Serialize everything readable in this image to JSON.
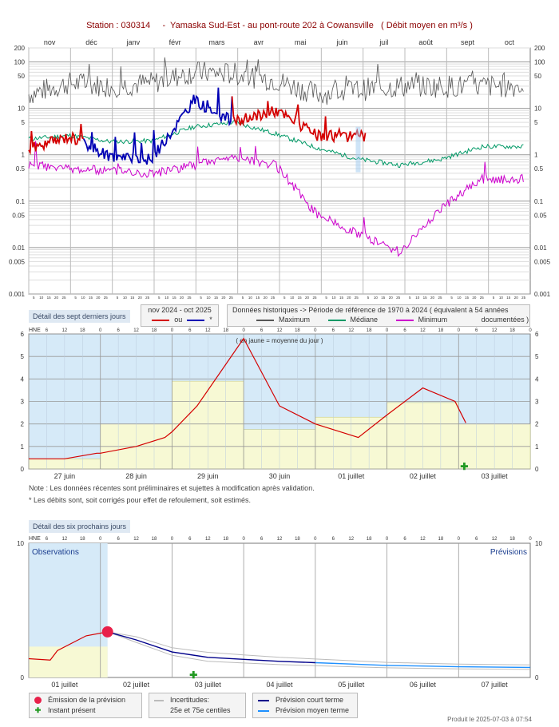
{
  "header": {
    "title": "Station : 030314     -  Yamaska Sud-Est - au pont-route 202 à Cowansville   ( Débit moyen en m³/s )"
  },
  "colors": {
    "obs_red": "#d40000",
    "obs_blue": "#0000b4",
    "median": "#009966",
    "maximum": "#555555",
    "minimum": "#cc00cc",
    "observed_bg": "#d6eaf8",
    "daily_mean_fill": "#f7f9d4",
    "forecast_short": "#00008b",
    "forecast_medium": "#1e90ff",
    "emission_dot": "#e8204a",
    "now_arrow": "#229922"
  },
  "annual_panel": {
    "legend_obs": {
      "period": "nov 2024 - oct 2025",
      "or": "ou",
      "star": "*"
    },
    "legend_hist": {
      "heading": "Données historiques -> Période de référence  de 1970 à 2024   ( équivalent à 54 années",
      "maximum": "Maximum",
      "median": "Médiane",
      "minimum": "Minimum",
      "documented": "documentées )"
    }
  },
  "week_panel": {
    "section_label": "Détail des sept derniers jours",
    "unit_tag": "HNE",
    "caption": "( en jaune = moyenne du jour )",
    "note1": "Note : Les données récentes sont préliminaires et sujettes à modification après validation.",
    "note2": "* Les débits sont, soit corrigés pour effet de refoulement, soit estimés."
  },
  "forecast_panel": {
    "section_label": "Détail des six prochains jours",
    "unit_tag": "HNE",
    "obs_label": "Observations",
    "fcst_label": "Prévisions",
    "legend": {
      "emission": "Émission de la prévision",
      "now": "Instant présent",
      "uncert1": "Incertitudes:",
      "uncert2": "25e et 75e centiles",
      "short": "Prévision court terme",
      "medium": "Prévision moyen terme"
    }
  },
  "footer": {
    "produced": "Produit le 2025-07-03 à 07:54"
  },
  "chart_data": [
    {
      "type": "line",
      "title": "Station : 030314 - Yamaska Sud-Est - au pont-route 202 à Cowansville ( Débit moyen en m³/s )",
      "x_labels": [
        "nov",
        "déc",
        "janv",
        "févr",
        "mars",
        "avr",
        "mai",
        "juin",
        "juil",
        "août",
        "sept",
        "oct"
      ],
      "x_day_ticks": [
        "5",
        "10",
        "15",
        "20",
        "25"
      ],
      "y_scale": "log",
      "ylim": [
        0.001,
        200
      ],
      "y_ticks": [
        "200",
        "100",
        "50",
        "10",
        "5",
        "1",
        "0.5",
        "0.1",
        "0.05",
        "0.01",
        "0.005",
        "0.001"
      ],
      "series": [
        {
          "name": "Maximum",
          "month_values": [
            20,
            35,
            30,
            35,
            60,
            55,
            40,
            20,
            25,
            30,
            30,
            30
          ]
        },
        {
          "name": "Médiane",
          "month_values": [
            2.2,
            2.6,
            1.9,
            2.0,
            4.0,
            5.0,
            2.8,
            1.4,
            0.8,
            0.6,
            0.8,
            1.5
          ]
        },
        {
          "name": "Minimum",
          "month_values": [
            0.6,
            0.5,
            0.45,
            0.4,
            0.6,
            0.9,
            0.6,
            0.05,
            0.02,
            0.008,
            0.07,
            0.3
          ]
        },
        {
          "name": "nov 2024 - oct 2025",
          "month_values": [
            1.3,
            2.5,
            0.9,
            0.8,
            15,
            5,
            9,
            2.5,
            2.5
          ]
        }
      ]
    },
    {
      "type": "line",
      "x_labels": [
        "27 juin",
        "28 juin",
        "29 juin",
        "30 juin",
        "01 juillet",
        "02 juillet",
        "03 juillet"
      ],
      "hour_ticks": [
        "6",
        "12",
        "18",
        "0"
      ],
      "ylim": [
        0,
        6
      ],
      "y_ticks": [
        "0",
        "1",
        "2",
        "3",
        "4",
        "5",
        "6"
      ],
      "daily_means": [
        0.45,
        2.0,
        3.9,
        1.75,
        2.3,
        2.95,
        2.0
      ],
      "series": [
        {
          "name": "",
          "x": [
            0,
            0.5,
            0.95,
            1.0,
            1.5,
            1.9,
            2.0,
            2.35,
            3.0,
            3.5,
            4.0,
            4.4,
            4.6,
            5.0,
            5.5,
            5.95,
            6.1
          ],
          "y": [
            0.45,
            0.45,
            0.7,
            0.7,
            1.0,
            1.4,
            1.65,
            2.8,
            5.8,
            2.8,
            2.0,
            1.6,
            1.4,
            2.4,
            3.6,
            3.0,
            2.05
          ]
        }
      ]
    },
    {
      "type": "line",
      "x_labels": [
        "01 juillet",
        "02 juillet",
        "03 juillet",
        "04 juillet",
        "05 juillet",
        "06 juillet",
        "07 juillet"
      ],
      "hour_ticks": [
        "6",
        "12",
        "18",
        "0"
      ],
      "ylim": [
        0,
        10
      ],
      "y_ticks": [
        "0",
        "10"
      ],
      "series": [
        {
          "name": "",
          "x": [
            0,
            0.3,
            0.4,
            0.8,
            1.1
          ],
          "y": [
            1.4,
            1.3,
            2.0,
            3.1,
            3.4
          ]
        },
        {
          "name": "",
          "x": [
            1.1,
            1.5,
            2.0,
            2.5,
            3.0,
            3.5,
            4.0,
            4.5,
            5.0,
            5.5,
            6.0,
            7.0
          ],
          "y": [
            3.4,
            2.8,
            1.9,
            1.5,
            1.35,
            1.2,
            1.1,
            1.0,
            0.9,
            0.85,
            0.8,
            0.75
          ]
        }
      ]
    }
  ]
}
